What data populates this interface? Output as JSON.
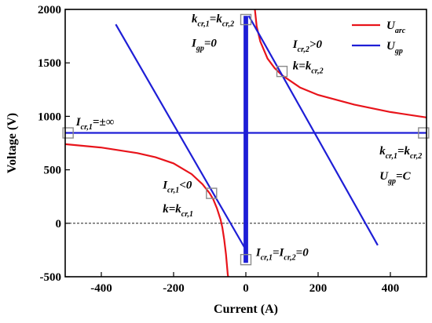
{
  "chart_data": {
    "type": "line",
    "xlabel": "Current (A)",
    "ylabel": "Voltage (V)",
    "xlim": [
      -500,
      500
    ],
    "ylim": [
      -500,
      2000
    ],
    "xticks": [
      "-400",
      "-200",
      "0",
      "200",
      "400"
    ],
    "yticks": [
      "-500",
      "0",
      "500",
      "1000",
      "1500",
      "2000"
    ],
    "xtick_values": [
      -400,
      -200,
      0,
      200,
      400
    ],
    "ytick_values": [
      -500,
      0,
      500,
      1000,
      1500,
      2000
    ],
    "legend_position": "top-right",
    "grid": false,
    "reference_lines": [
      {
        "type": "horizontal-dashed",
        "y": 0
      }
    ],
    "series": [
      {
        "name": "U_arc",
        "label_main": "U",
        "label_sub": "arc",
        "color": "#e8141b",
        "segments": [
          [
            [
              -500,
              740
            ],
            [
              -400,
              708
            ],
            [
              -300,
              656
            ],
            [
              -250,
              617
            ],
            [
              -200,
              560
            ],
            [
              -150,
              460
            ],
            [
              -120,
              365
            ],
            [
              -100,
              280
            ],
            [
              -90,
              222
            ],
            [
              -80,
              140
            ],
            [
              -70,
              35
            ],
            [
              -65,
              -40
            ],
            [
              -60,
              -150
            ],
            [
              -55,
              -290
            ],
            [
              -50,
              -480
            ],
            [
              -49,
              -500
            ]
          ],
          [
            [
              25,
              2000
            ],
            [
              30,
              1840
            ],
            [
              40,
              1700
            ],
            [
              60,
              1540
            ],
            [
              80,
              1450
            ],
            [
              100,
              1385
            ],
            [
              150,
              1270
            ],
            [
              200,
              1200
            ],
            [
              300,
              1110
            ],
            [
              400,
              1040
            ],
            [
              500,
              990
            ]
          ]
        ]
      },
      {
        "name": "U_gp",
        "label_main": "U",
        "label_sub": "gp",
        "color": "#1e1ed6",
        "segments": [
          [
            [
              -360,
              1860
            ],
            [
              -4,
              -225
            ]
          ],
          [
            [
              -500,
              845
            ],
            [
              500,
              845
            ]
          ],
          [
            [
              -4,
              -370
            ],
            [
              -4,
              1940
            ]
          ],
          [
            [
              0,
              -370
            ],
            [
              0,
              1940
            ]
          ],
          [
            [
              4,
              -370
            ],
            [
              4,
              1940
            ]
          ],
          [
            [
              8,
              1940
            ],
            [
              365,
              -205
            ]
          ]
        ]
      }
    ],
    "markers": [
      {
        "x": -492,
        "y": 845
      },
      {
        "x": -95,
        "y": 280
      },
      {
        "x": 0,
        "y": 1905
      },
      {
        "x": 100,
        "y": 1420
      },
      {
        "x": 492,
        "y": 845
      },
      {
        "x": 0,
        "y": -340
      }
    ],
    "annotations": [
      {
        "id": "i-inf",
        "parts": [
          "I",
          "cr,1",
          "=±∞"
        ],
        "x": -470,
        "y": 915
      },
      {
        "id": "kcr-top",
        "parts": [
          "k",
          "cr,1",
          "=k",
          "cr,2"
        ],
        "x": -150,
        "y": 1880
      },
      {
        "id": "igp-zero",
        "parts": [
          "I",
          "gp",
          "=0"
        ],
        "x": -150,
        "y": 1650
      },
      {
        "id": "icr2-pos",
        "parts": [
          "I",
          "cr,2",
          ">0"
        ],
        "x": 130,
        "y": 1640
      },
      {
        "id": "k-kcr2",
        "parts": [
          "k=k",
          "cr,2"
        ],
        "x": 130,
        "y": 1440
      },
      {
        "id": "kcr-right",
        "parts": [
          "k",
          "cr,1",
          "=k",
          "cr,2"
        ],
        "x": 370,
        "y": 645
      },
      {
        "id": "ugp-c",
        "parts": [
          "U",
          "gp",
          "=C"
        ],
        "x": 370,
        "y": 410
      },
      {
        "id": "icr1-neg",
        "parts": [
          "I",
          "cr,1",
          "<0"
        ],
        "x": -230,
        "y": 325
      },
      {
        "id": "k-kcr1",
        "parts": [
          "k=k",
          "cr,1"
        ],
        "x": -230,
        "y": 100
      },
      {
        "id": "icr-eq-zero",
        "parts": [
          "I",
          "cr,1",
          "=I",
          "cr,2",
          "=0"
        ],
        "x": 28,
        "y": -305
      }
    ]
  }
}
